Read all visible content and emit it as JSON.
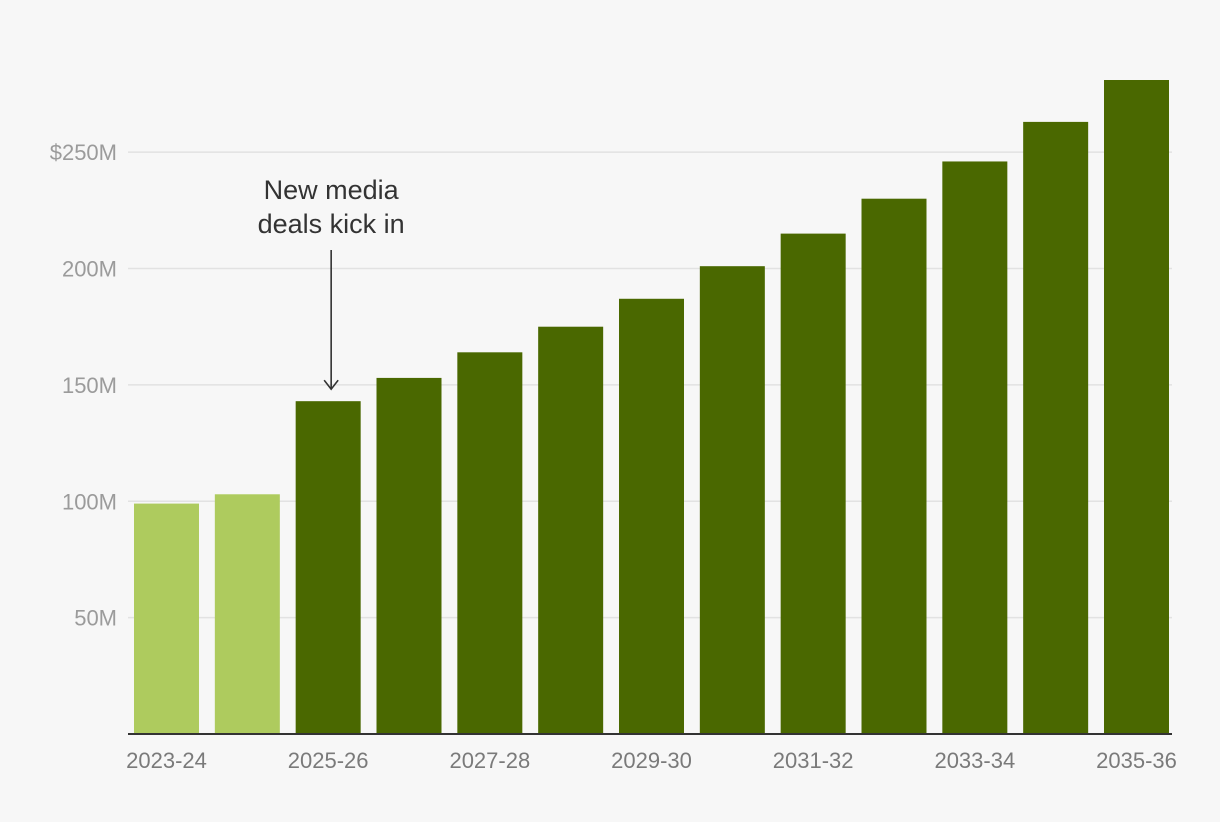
{
  "chart_data": {
    "type": "bar",
    "categories": [
      "2023-24",
      "2024-25",
      "2025-26",
      "2026-27",
      "2027-28",
      "2028-29",
      "2029-30",
      "2030-31",
      "2031-32",
      "2032-33",
      "2033-34",
      "2034-35",
      "2035-36"
    ],
    "values": [
      99,
      103,
      143,
      153,
      164,
      175,
      187,
      201,
      215,
      230,
      246,
      263,
      281
    ],
    "shown_x_labels": [
      "2023-24",
      "2025-26",
      "2027-28",
      "2029-30",
      "2031-32",
      "2033-34",
      "2035-36"
    ],
    "y_ticks": [
      {
        "value": 250,
        "label": "$250M"
      },
      {
        "value": 200,
        "label": "200M"
      },
      {
        "value": 150,
        "label": "150M"
      },
      {
        "value": 100,
        "label": "100M"
      },
      {
        "value": 50,
        "label": "50M"
      }
    ],
    "ylim": [
      0,
      281
    ],
    "grid": true,
    "colors": {
      "highlight_light": "#aecb5e",
      "main": "#4a6800",
      "gridline": "#e2e2e2",
      "baseline": "#333333",
      "tick_text": "#9b9b9b",
      "annotation_text": "#333333"
    },
    "light_bar_categories": [
      "2023-24",
      "2024-25"
    ],
    "annotation": {
      "lines": [
        "New media",
        "deals kick in"
      ],
      "target_category": "2025-26"
    }
  }
}
